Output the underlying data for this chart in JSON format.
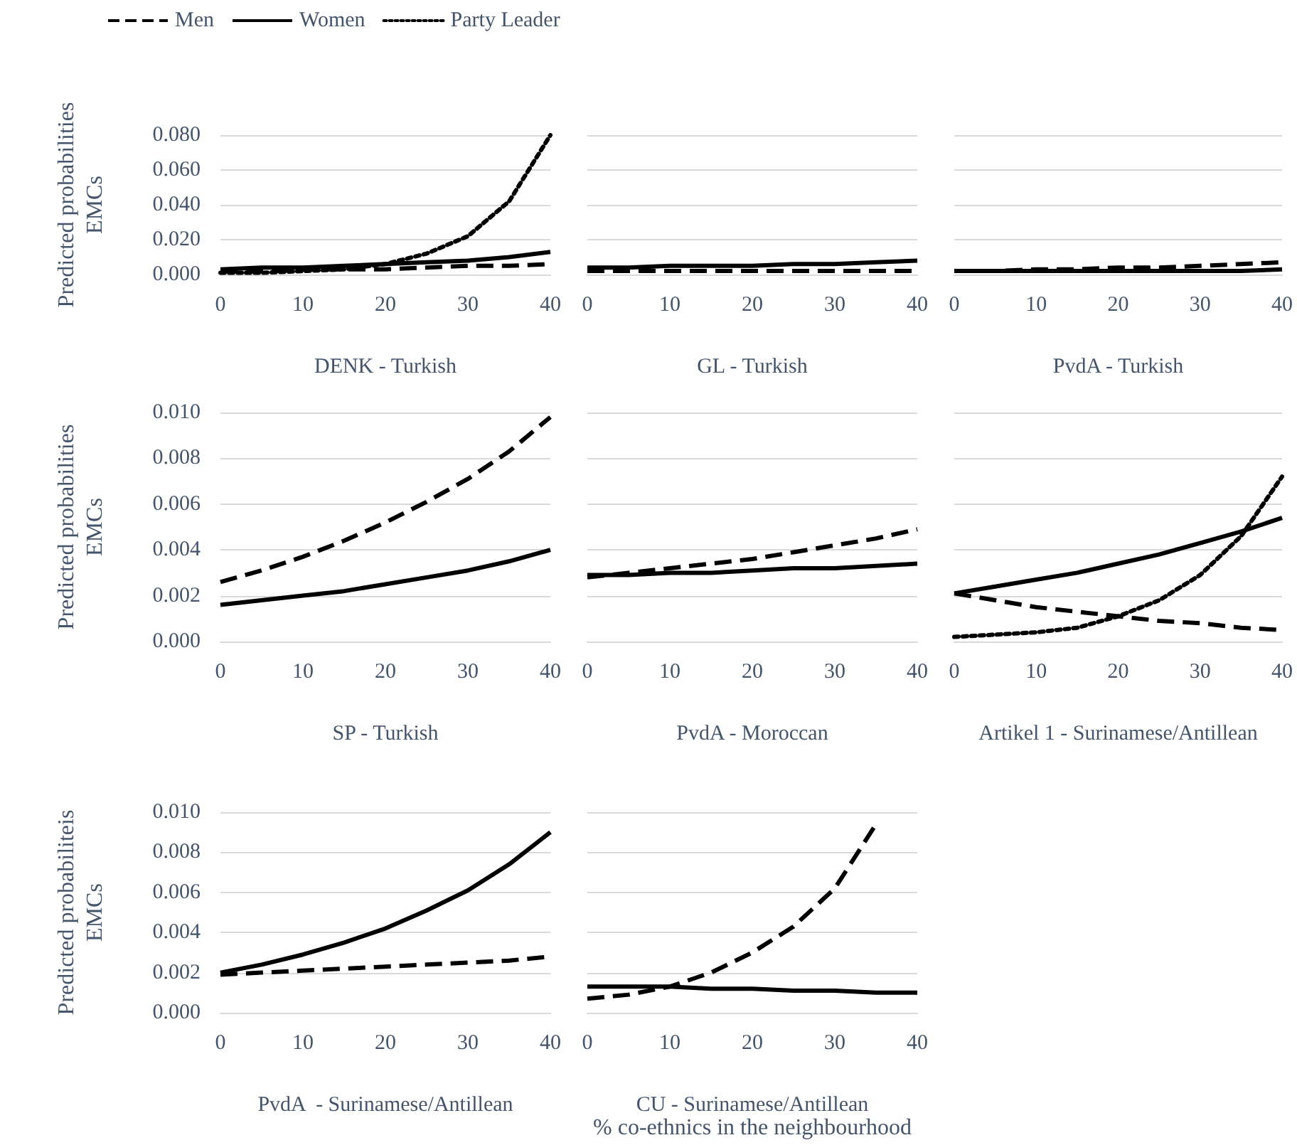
{
  "chart_data": [
    {
      "type": "line",
      "xlabel": "DENK - Turkish",
      "ylabel": "Predicted probabilities\nEMCs",
      "legend": "top",
      "grid": "y",
      "x": [
        0,
        5,
        10,
        15,
        20,
        25,
        30,
        35,
        40
      ],
      "xlim": [
        0,
        40
      ],
      "xticks": [
        0,
        10,
        20,
        30,
        40
      ],
      "ylim": [
        0,
        0.08
      ],
      "yticks": [
        {
          "value": 0,
          "label": "0.000"
        },
        {
          "value": 0.02,
          "label": "0.020"
        },
        {
          "value": 0.04,
          "label": "0.040"
        },
        {
          "value": 0.06,
          "label": "0.060"
        },
        {
          "value": 0.08,
          "label": "0.080"
        }
      ],
      "series": [
        {
          "name": "Men",
          "color": "#000000",
          "line_style": "dashed",
          "values": [
            0.002,
            0.002,
            0.003,
            0.003,
            0.003,
            0.004,
            0.005,
            0.005,
            0.006
          ]
        },
        {
          "name": "Women",
          "color": "#000000",
          "line_style": "solid",
          "values": [
            0.003,
            0.004,
            0.004,
            0.005,
            0.006,
            0.007,
            0.008,
            0.01,
            0.013
          ]
        },
        {
          "name": "Party Leader",
          "color": "#000000",
          "line_style": "dotted",
          "values": [
            0.001,
            0.001,
            0.002,
            0.003,
            0.006,
            0.012,
            0.022,
            0.042,
            0.08
          ]
        }
      ]
    },
    {
      "type": "line",
      "xlabel": "GL - Turkish",
      "tick_labels": "x",
      "grid": "y",
      "x": [
        0,
        5,
        10,
        15,
        20,
        25,
        30,
        35,
        40
      ],
      "xlim": [
        0,
        40
      ],
      "xticks": [
        0,
        10,
        20,
        30,
        40
      ],
      "ylim": [
        0,
        0.08
      ],
      "yticks": [
        0,
        0.02,
        0.04,
        0.06,
        0.08
      ],
      "series": [
        {
          "color": "#000000",
          "line_style": "dashed",
          "values": [
            0.002,
            0.002,
            0.002,
            0.002,
            0.002,
            0.002,
            0.002,
            0.002,
            0.002
          ]
        },
        {
          "color": "#000000",
          "line_style": "solid",
          "values": [
            0.004,
            0.004,
            0.005,
            0.005,
            0.005,
            0.006,
            0.006,
            0.007,
            0.008
          ]
        }
      ]
    },
    {
      "type": "line",
      "xlabel": "PvdA - Turkish",
      "tick_labels": "x",
      "grid": "y",
      "x": [
        0,
        5,
        10,
        15,
        20,
        25,
        30,
        35,
        40
      ],
      "xlim": [
        0,
        40
      ],
      "xticks": [
        0,
        10,
        20,
        30,
        40
      ],
      "ylim": [
        0,
        0.08
      ],
      "yticks": [
        0,
        0.02,
        0.04,
        0.06,
        0.08
      ],
      "series": [
        {
          "color": "#000000",
          "line_style": "dashed",
          "values": [
            0.002,
            0.002,
            0.003,
            0.003,
            0.004,
            0.004,
            0.005,
            0.006,
            0.007
          ]
        },
        {
          "color": "#000000",
          "line_style": "solid",
          "values": [
            0.002,
            0.002,
            0.002,
            0.002,
            0.002,
            0.002,
            0.002,
            0.002,
            0.003
          ]
        }
      ]
    },
    {
      "type": "line",
      "xlabel": "SP - Turkish",
      "ylabel": "Predicted probabilities\nEMCs",
      "grid": "y",
      "x": [
        0,
        5,
        10,
        15,
        20,
        25,
        30,
        35,
        40
      ],
      "xlim": [
        0,
        40
      ],
      "xticks": [
        0,
        10,
        20,
        30,
        40
      ],
      "ylim": [
        0,
        0.01
      ],
      "yticks": [
        {
          "value": 0,
          "label": "0.000"
        },
        {
          "value": 0.002,
          "label": "0.002"
        },
        {
          "value": 0.004,
          "label": "0.004"
        },
        {
          "value": 0.006,
          "label": "0.006"
        },
        {
          "value": 0.008,
          "label": "0.008"
        },
        {
          "value": 0.01,
          "label": "0.010"
        }
      ],
      "series": [
        {
          "color": "#000000",
          "line_style": "dashed",
          "values": [
            0.0026,
            0.0031,
            0.0037,
            0.0044,
            0.0052,
            0.0061,
            0.0071,
            0.0083,
            0.0098
          ]
        },
        {
          "color": "#000000",
          "line_style": "solid",
          "values": [
            0.0016,
            0.0018,
            0.002,
            0.0022,
            0.0025,
            0.0028,
            0.0031,
            0.0035,
            0.004
          ]
        }
      ]
    },
    {
      "type": "line",
      "xlabel": "PvdA - Moroccan",
      "tick_labels": "x",
      "grid": "y",
      "x": [
        0,
        5,
        10,
        15,
        20,
        25,
        30,
        35,
        40
      ],
      "xlim": [
        0,
        40
      ],
      "xticks": [
        0,
        10,
        20,
        30,
        40
      ],
      "ylim": [
        0,
        0.01
      ],
      "yticks": [
        0,
        0.002,
        0.004,
        0.006,
        0.008,
        0.01
      ],
      "series": [
        {
          "color": "#000000",
          "line_style": "dashed",
          "values": [
            0.0028,
            0.003,
            0.0032,
            0.0034,
            0.0036,
            0.0039,
            0.0042,
            0.0045,
            0.0049
          ]
        },
        {
          "color": "#000000",
          "line_style": "solid",
          "values": [
            0.0029,
            0.0029,
            0.003,
            0.003,
            0.0031,
            0.0032,
            0.0032,
            0.0033,
            0.0034
          ]
        }
      ]
    },
    {
      "type": "line",
      "xlabel": "Artikel 1 - Surinamese/Antillean",
      "tick_labels": "x",
      "grid": "y",
      "x": [
        0,
        5,
        10,
        15,
        20,
        25,
        30,
        35,
        40
      ],
      "xlim": [
        0,
        40
      ],
      "xticks": [
        0,
        10,
        20,
        30,
        40
      ],
      "ylim": [
        0,
        0.01
      ],
      "yticks": [
        0,
        0.002,
        0.004,
        0.006,
        0.008,
        0.01
      ],
      "series": [
        {
          "color": "#000000",
          "line_style": "dashed",
          "values": [
            0.0021,
            0.0018,
            0.0015,
            0.0013,
            0.0011,
            0.0009,
            0.0008,
            0.0006,
            0.0005
          ]
        },
        {
          "color": "#000000",
          "line_style": "solid",
          "values": [
            0.0021,
            0.0024,
            0.0027,
            0.003,
            0.0034,
            0.0038,
            0.0043,
            0.0048,
            0.0054
          ]
        },
        {
          "color": "#000000",
          "line_style": "dotted",
          "values": [
            0.0002,
            0.0003,
            0.0004,
            0.0006,
            0.0011,
            0.0018,
            0.0029,
            0.0046,
            0.0072
          ]
        }
      ]
    },
    {
      "type": "line",
      "xlabel": "PvdA  - Surinamese/Antillean",
      "ylabel": "Predicted probabiliteis\nEMCs",
      "grid": "y",
      "x": [
        0,
        5,
        10,
        15,
        20,
        25,
        30,
        35,
        40
      ],
      "xlim": [
        0,
        40
      ],
      "xticks": [
        0,
        10,
        20,
        30,
        40
      ],
      "ylim": [
        0,
        0.01
      ],
      "yticks": [
        {
          "value": 0,
          "label": "0.000"
        },
        {
          "value": 0.002,
          "label": "0.002"
        },
        {
          "value": 0.004,
          "label": "0.004"
        },
        {
          "value": 0.006,
          "label": "0.006"
        },
        {
          "value": 0.008,
          "label": "0.008"
        },
        {
          "value": 0.01,
          "label": "0.010"
        }
      ],
      "series": [
        {
          "color": "#000000",
          "line_style": "dashed",
          "values": [
            0.0019,
            0.002,
            0.0021,
            0.0022,
            0.0023,
            0.0024,
            0.0025,
            0.0026,
            0.0028
          ]
        },
        {
          "color": "#000000",
          "line_style": "solid",
          "values": [
            0.002,
            0.0024,
            0.0029,
            0.0035,
            0.0042,
            0.0051,
            0.0061,
            0.0074,
            0.009
          ]
        }
      ]
    },
    {
      "type": "line",
      "xlabel": "CU - Surinamese/Antillean",
      "tick_labels": "x",
      "grid": "y",
      "annotations": [
        "% co-ethnics in the neighbourhood"
      ],
      "x": [
        0,
        5,
        10,
        15,
        20,
        25,
        30,
        35,
        40
      ],
      "xlim": [
        0,
        40
      ],
      "xticks": [
        0,
        10,
        20,
        30,
        40
      ],
      "ylim": [
        0,
        0.01
      ],
      "yticks": [
        0,
        0.002,
        0.004,
        0.006,
        0.008,
        0.01
      ],
      "series": [
        {
          "color": "#000000",
          "line_style": "dashed",
          "values": [
            0.0007,
            0.0009,
            0.0013,
            0.002,
            0.003,
            0.0043,
            0.0062,
            0.0094,
            null
          ]
        },
        {
          "color": "#000000",
          "line_style": "solid",
          "values": [
            0.0013,
            0.0013,
            0.0013,
            0.0012,
            0.0012,
            0.0011,
            0.0011,
            0.001,
            0.001
          ]
        }
      ]
    }
  ]
}
